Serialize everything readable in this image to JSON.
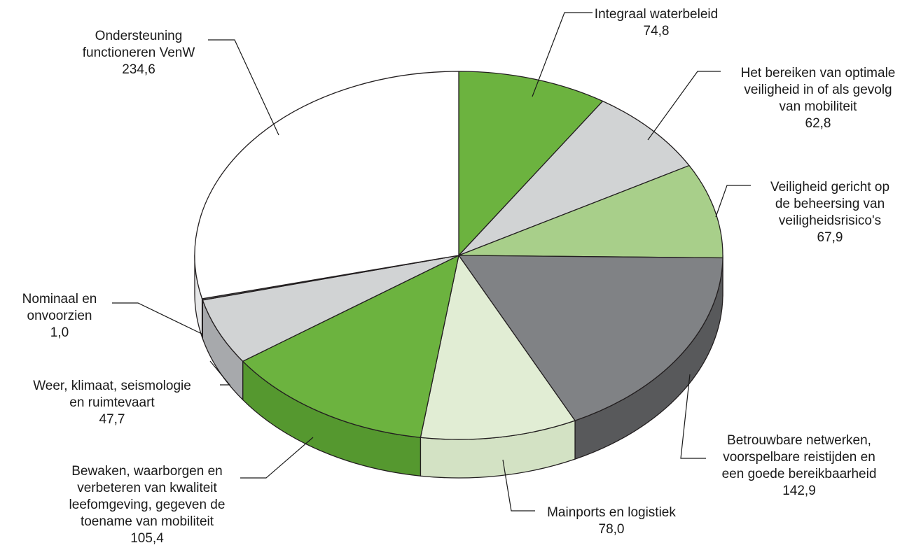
{
  "chart_data": {
    "type": "pie",
    "style": "3d",
    "title": "",
    "slices": [
      {
        "lines": [
          "Integraal waterbeleid"
        ],
        "value": 74.8,
        "value_label": "74,8",
        "color": "#6cb33f",
        "side": "#55982f"
      },
      {
        "lines": [
          "Het bereiken van optimale",
          "veiligheid in of als gevolg",
          "van mobiliteit"
        ],
        "value": 62.8,
        "value_label": "62,8",
        "color": "#d1d3d4",
        "side": "#a7a9ac"
      },
      {
        "lines": [
          "Veiligheid gericht op",
          "de beheersing van",
          "veiligheidsrisico's"
        ],
        "value": 67.9,
        "value_label": "67,9",
        "color": "#a8cf8a",
        "side": "#88b06a"
      },
      {
        "lines": [
          "Betrouwbare netwerken,",
          "voorspelbare reistijden en",
          "een goede bereikbaarheid"
        ],
        "value": 142.9,
        "value_label": "142,9",
        "color": "#808285",
        "side": "#58595b"
      },
      {
        "lines": [
          "Mainports en logistiek"
        ],
        "value": 78.0,
        "value_label": "78,0",
        "color": "#e1edd4",
        "side": "#d3e2c4"
      },
      {
        "lines": [
          "Bewaken, waarborgen en",
          "verbeteren van kwaliteit",
          "leefomgeving, gegeven de",
          "toename van mobiliteit"
        ],
        "value": 105.4,
        "value_label": "105,4",
        "color": "#6cb33f",
        "side": "#55982f"
      },
      {
        "lines": [
          "Weer, klimaat, seismologie",
          "en ruimtevaart"
        ],
        "value": 47.7,
        "value_label": "47,7",
        "color": "#d1d3d4",
        "side": "#a7a9ac"
      },
      {
        "lines": [
          "Nominaal en",
          "onvoorzien"
        ],
        "value": 1.0,
        "value_label": "1,0",
        "color": "#58595b",
        "side": "#404041"
      },
      {
        "lines": [
          "Ondersteuning",
          "functioneren VenW"
        ],
        "value": 234.6,
        "value_label": "234,6",
        "color": "#ffffff",
        "side": "#e6e7e8"
      }
    ]
  }
}
